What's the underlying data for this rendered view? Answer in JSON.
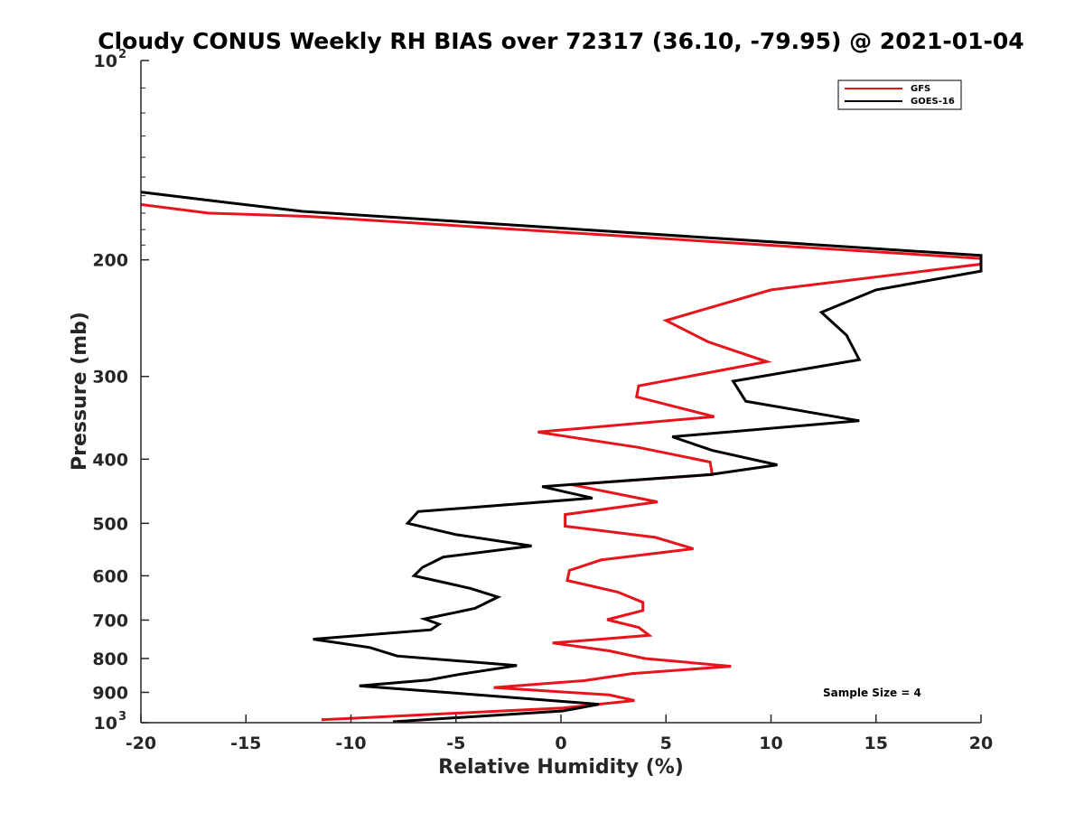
{
  "chart_data": {
    "type": "line",
    "title": "Cloudy CONUS Weekly RH BIAS over 72317 (36.10, -79.95) @ 2021-01-04",
    "xlabel": "Relative Humidity (%)",
    "ylabel": "Pressure (mb)",
    "xlim": [
      -20,
      20
    ],
    "ylim": [
      100,
      1000
    ],
    "y_scale": "log",
    "y_reversed": true,
    "x_ticks": [
      "-20",
      "-15",
      "-10",
      "-5",
      "0",
      "5",
      "10",
      "15",
      "20"
    ],
    "y_ticks": [
      {
        "value": 100,
        "label": "10",
        "sup": "2"
      },
      {
        "value": 200,
        "label": "200",
        "sup": ""
      },
      {
        "value": 300,
        "label": "300",
        "sup": ""
      },
      {
        "value": 400,
        "label": "400",
        "sup": ""
      },
      {
        "value": 500,
        "label": "500",
        "sup": ""
      },
      {
        "value": 600,
        "label": "600",
        "sup": ""
      },
      {
        "value": 700,
        "label": "700",
        "sup": ""
      },
      {
        "value": 800,
        "label": "800",
        "sup": ""
      },
      {
        "value": 900,
        "label": "900",
        "sup": ""
      },
      {
        "value": 1000,
        "label": "10",
        "sup": "3"
      }
    ],
    "grid": false,
    "legend_position": "top-right",
    "annotation": "Sample Size = 4",
    "series": [
      {
        "name": "GFS",
        "color": "#e8141b",
        "points": [
          [
            -20,
            165
          ],
          [
            -16.8,
            170
          ],
          [
            -12,
            172
          ],
          [
            20,
            199
          ],
          [
            20,
            203
          ],
          [
            10,
            222
          ],
          [
            5,
            247
          ],
          [
            7,
            266
          ],
          [
            9.8,
            285
          ],
          [
            3.7,
            310
          ],
          [
            3.6,
            322
          ],
          [
            7.3,
            345
          ],
          [
            -1.1,
            364
          ],
          [
            3.7,
            384
          ],
          [
            7.1,
            404
          ],
          [
            7.2,
            422
          ],
          [
            0.5,
            437
          ],
          [
            4.6,
            464
          ],
          [
            0.2,
            485
          ],
          [
            0.2,
            505
          ],
          [
            4.5,
            525
          ],
          [
            6.3,
            546
          ],
          [
            1.9,
            568
          ],
          [
            0.4,
            589
          ],
          [
            0.3,
            610
          ],
          [
            2.7,
            635
          ],
          [
            3.9,
            658
          ],
          [
            3.9,
            677
          ],
          [
            2.2,
            699
          ],
          [
            3.7,
            718
          ],
          [
            4.2,
            738
          ],
          [
            -0.4,
            758
          ],
          [
            2.3,
            779
          ],
          [
            4.0,
            800
          ],
          [
            8.1,
            822
          ],
          [
            3.4,
            843
          ],
          [
            1.1,
            864
          ],
          [
            -3.2,
            885
          ],
          [
            2.3,
            908
          ],
          [
            3.5,
            926
          ],
          [
            0.1,
            950
          ],
          [
            -11.4,
            990
          ]
        ]
      },
      {
        "name": "GOES-16",
        "color": "#000000",
        "points": [
          [
            -20,
            158
          ],
          [
            -16.5,
            163
          ],
          [
            -12.3,
            169
          ],
          [
            20,
            197
          ],
          [
            20,
            208
          ],
          [
            15,
            222
          ],
          [
            12.4,
            240
          ],
          [
            13.6,
            260
          ],
          [
            14.2,
            283
          ],
          [
            8.2,
            305
          ],
          [
            8.8,
            327
          ],
          [
            14.2,
            350
          ],
          [
            5.3,
            370
          ],
          [
            7.2,
            388
          ],
          [
            10.3,
            408
          ],
          [
            7.1,
            422
          ],
          [
            -0.9,
            440
          ],
          [
            1.5,
            458
          ],
          [
            -6.8,
            480
          ],
          [
            -7.3,
            500
          ],
          [
            -5.0,
            520
          ],
          [
            -1.4,
            541
          ],
          [
            -5.6,
            562
          ],
          [
            -6.6,
            583
          ],
          [
            -7.0,
            600
          ],
          [
            -4.3,
            627
          ],
          [
            -3.0,
            646
          ],
          [
            -4.1,
            672
          ],
          [
            -6.5,
            697
          ],
          [
            -5.8,
            710
          ],
          [
            -6.2,
            724
          ],
          [
            -11.8,
            748
          ],
          [
            -9.1,
            770
          ],
          [
            -7.8,
            793
          ],
          [
            -2.1,
            820
          ],
          [
            -4.9,
            846
          ],
          [
            -6.3,
            862
          ],
          [
            -9.6,
            880
          ],
          [
            -4.5,
            905
          ],
          [
            1.8,
            938
          ],
          [
            0.1,
            960
          ],
          [
            -8.0,
            997
          ]
        ]
      }
    ]
  }
}
